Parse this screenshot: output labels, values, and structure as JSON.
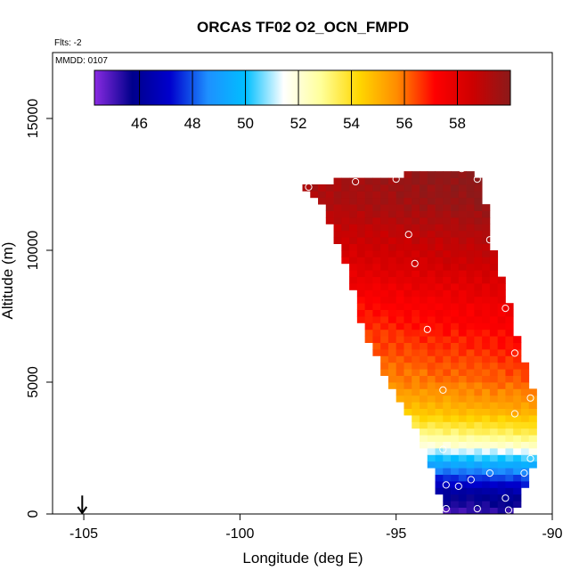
{
  "chart_data": {
    "type": "heatmap",
    "title": "ORCAS TF02 O2_OCN_FMPD",
    "flights_label": "Flts: -2",
    "date_label": "MMDD: 0107",
    "xlabel": "Longitude (deg E)",
    "ylabel": "Altitude (m)",
    "xlim": [
      -106,
      -90
    ],
    "ylim": [
      0,
      17500
    ],
    "xticks": [
      -105,
      -100,
      -95,
      -90
    ],
    "yticks": [
      0,
      5000,
      10000,
      15000
    ],
    "colorbar": {
      "range": [
        44.3,
        60
      ],
      "ticks": [
        46,
        48,
        50,
        52,
        54,
        56,
        58
      ],
      "colors": [
        "#8a2be2",
        "#00008b",
        "#0000cd",
        "#1e90ff",
        "#00bfff",
        "#ffffff",
        "#ffff99",
        "#ffd700",
        "#ff8c00",
        "#ff0000",
        "#cd0000",
        "#8b1a1a"
      ]
    },
    "arrow_marker": {
      "longitude": -105.05,
      "altitude_top": 700,
      "altitude_bottom": 0
    },
    "region": {
      "lon_step": 0.25,
      "alt_step": 250,
      "left_edge": [
        [
          0,
          -93.5
        ],
        [
          1250,
          -93.7
        ],
        [
          2500,
          -94.1
        ],
        [
          3750,
          -94.6
        ],
        [
          5000,
          -95.2
        ],
        [
          6250,
          -95.8
        ],
        [
          7500,
          -96.2
        ],
        [
          8750,
          -96.4
        ],
        [
          10000,
          -96.8
        ],
        [
          11250,
          -97.2
        ],
        [
          12000,
          -97.5
        ],
        [
          12500,
          -98.0
        ]
      ],
      "right_edge": [
        [
          0,
          -91.3
        ],
        [
          1500,
          -90.8
        ],
        [
          2000,
          -90.7
        ],
        [
          4500,
          -90.7
        ],
        [
          5500,
          -90.9
        ],
        [
          6250,
          -91.1
        ],
        [
          7500,
          -91.4
        ],
        [
          8750,
          -91.7
        ],
        [
          10000,
          -92.0
        ],
        [
          11250,
          -92.1
        ],
        [
          12000,
          -92.3
        ],
        [
          12800,
          -92.5
        ],
        [
          13100,
          -92.8
        ]
      ],
      "top_edge": [
        [
          -98.0,
          12500
        ],
        [
          -97.2,
          12600
        ],
        [
          -96.2,
          12700
        ],
        [
          -95.0,
          12800
        ],
        [
          -94.2,
          13000
        ],
        [
          -92.8,
          13100
        ],
        [
          -92.3,
          12800
        ]
      ],
      "value_profile": [
        [
          0,
          45.0
        ],
        [
          800,
          46.0
        ],
        [
          1500,
          48.0
        ],
        [
          2100,
          50.0
        ],
        [
          2600,
          52.0
        ],
        [
          3200,
          53.5
        ],
        [
          4000,
          55.0
        ],
        [
          5000,
          56.0
        ],
        [
          6500,
          56.8
        ],
        [
          8000,
          57.5
        ],
        [
          9500,
          58.5
        ],
        [
          11000,
          59.3
        ],
        [
          12000,
          59.8
        ],
        [
          13500,
          60.0
        ]
      ]
    },
    "sample_points": [
      {
        "lon": -93.4,
        "alt": 200
      },
      {
        "lon": -92.4,
        "alt": 200
      },
      {
        "lon": -91.4,
        "alt": 150
      },
      {
        "lon": -91.5,
        "alt": 600
      },
      {
        "lon": -93.4,
        "alt": 1100
      },
      {
        "lon": -93.0,
        "alt": 1050
      },
      {
        "lon": -92.6,
        "alt": 1300
      },
      {
        "lon": -92.0,
        "alt": 1550
      },
      {
        "lon": -90.9,
        "alt": 1550
      },
      {
        "lon": -90.7,
        "alt": 2100
      },
      {
        "lon": -93.5,
        "alt": 2450
      },
      {
        "lon": -91.2,
        "alt": 3800
      },
      {
        "lon": -90.7,
        "alt": 4400
      },
      {
        "lon": -93.5,
        "alt": 4700
      },
      {
        "lon": -91.2,
        "alt": 6100
      },
      {
        "lon": -94.0,
        "alt": 7000
      },
      {
        "lon": -91.5,
        "alt": 7800
      },
      {
        "lon": -94.4,
        "alt": 9500
      },
      {
        "lon": -94.6,
        "alt": 10600
      },
      {
        "lon": -92.0,
        "alt": 10400
      },
      {
        "lon": -96.3,
        "alt": 12600
      },
      {
        "lon": -95.0,
        "alt": 12700
      },
      {
        "lon": -92.4,
        "alt": 12700
      },
      {
        "lon": -92.9,
        "alt": 13100
      },
      {
        "lon": -97.8,
        "alt": 12400
      }
    ]
  }
}
